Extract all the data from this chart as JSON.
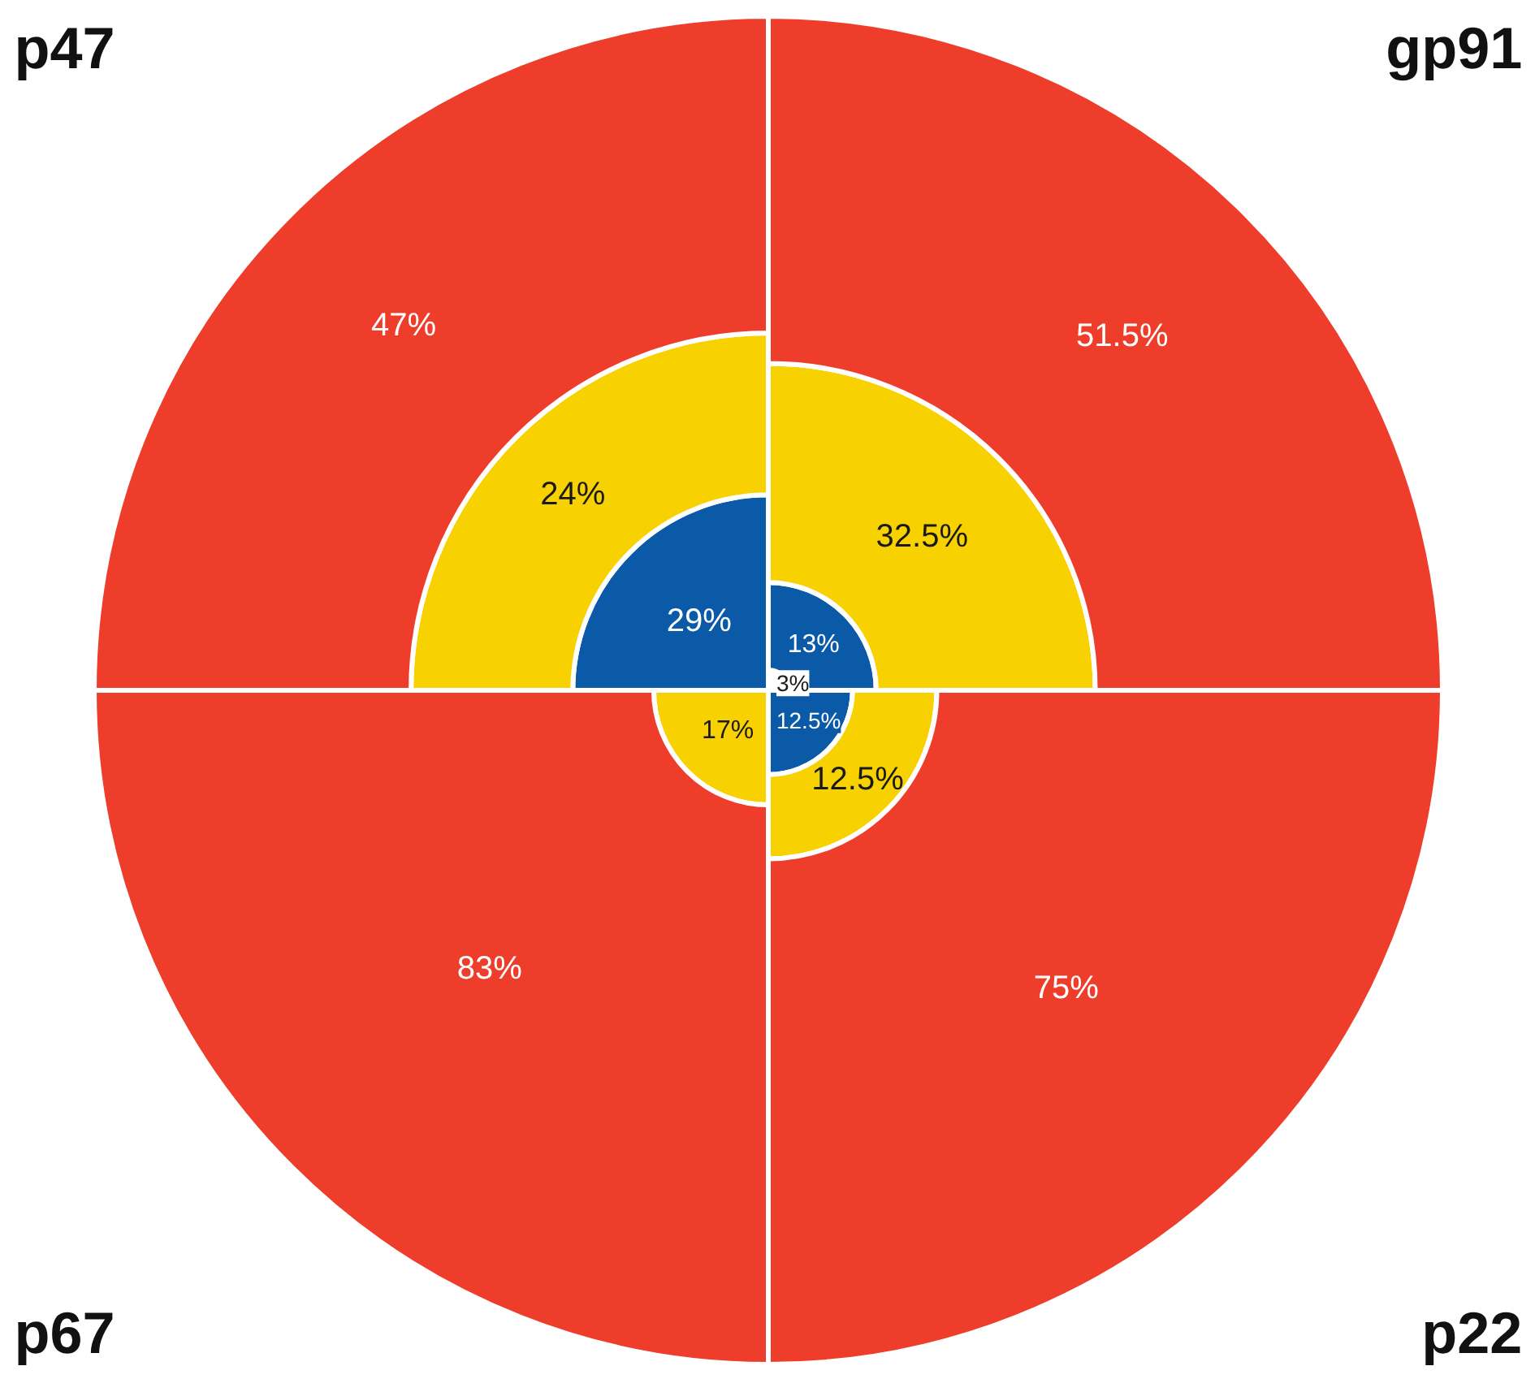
{
  "chart_data": {
    "type": "other",
    "categories": [
      "p47",
      "gp91",
      "p67",
      "p22"
    ],
    "series": [
      {
        "color": "#ffffff",
        "values": [
          null,
          3,
          null,
          null
        ],
        "value_labels": [
          null,
          "3%",
          null,
          null
        ]
      },
      {
        "color": "#0a5aa8",
        "values": [
          29,
          13,
          null,
          12.5
        ],
        "value_labels": [
          "29%",
          "13%",
          null,
          "12.5%"
        ]
      },
      {
        "color": "#f7d200",
        "values": [
          24,
          32.5,
          17,
          12.5
        ],
        "value_labels": [
          "24%",
          "32.5%",
          "17%",
          "12.5%"
        ]
      },
      {
        "color": "#ee3e2b",
        "values": [
          47,
          51.5,
          83,
          75
        ],
        "value_labels": [
          "47%",
          "51.5%",
          "83%",
          "75%"
        ]
      }
    ]
  }
}
